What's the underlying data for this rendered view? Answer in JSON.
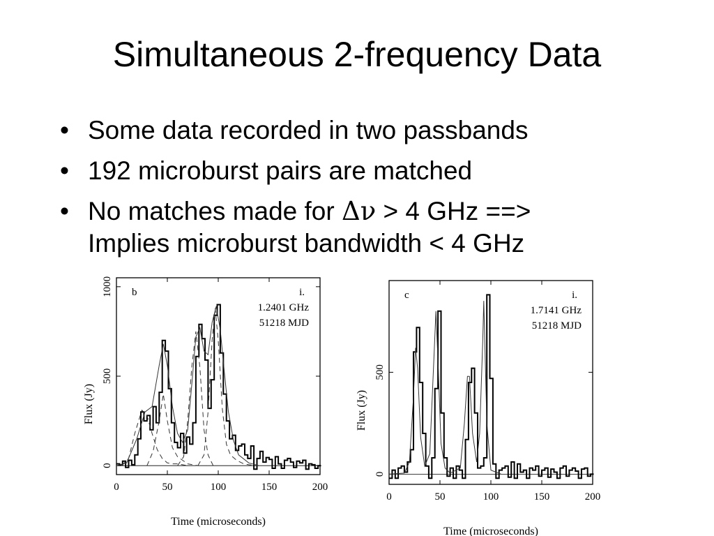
{
  "slide": {
    "title": "Simultaneous 2-frequency Data",
    "bullets": [
      {
        "text": "Some data recorded in two passbands"
      },
      {
        "text": "192 microburst pairs are matched"
      },
      {
        "prefix": "No matches made for ",
        "symbol": "Δν",
        "suffix": " > 4 GHz ==>",
        "continuation": "Implies microburst bandwidth < 4 GHz"
      }
    ],
    "bullet_glyph": "•"
  },
  "chart_data": [
    {
      "type": "line",
      "panel_label": "b",
      "corner_label": "i.",
      "annotations": [
        "1.2401 GHz",
        "51218 MJD"
      ],
      "xlabel": "Time (microseconds)",
      "ylabel": "Flux (Jy)",
      "xlim": [
        0,
        200
      ],
      "ylim": [
        -50,
        1050
      ],
      "x_ticks": [
        0,
        50,
        100,
        150,
        200
      ],
      "y_ticks": [
        0,
        500,
        1000
      ],
      "grid": false,
      "series": [
        {
          "style": "histogram",
          "x": [
            0,
            3,
            6,
            9,
            12,
            15,
            18,
            21,
            24,
            27,
            30,
            33,
            36,
            39,
            42,
            45,
            48,
            51,
            54,
            57,
            60,
            63,
            66,
            69,
            72,
            75,
            78,
            81,
            84,
            87,
            90,
            93,
            96,
            99,
            102,
            105,
            108,
            111,
            114,
            117,
            120,
            123,
            126,
            129,
            132,
            135,
            138,
            141,
            144,
            147,
            150,
            153,
            156,
            159,
            162,
            165,
            168,
            171,
            174,
            177,
            180,
            183,
            186,
            189,
            192,
            195,
            198
          ],
          "values": [
            10,
            5,
            25,
            -10,
            30,
            5,
            60,
            150,
            300,
            250,
            280,
            200,
            330,
            240,
            410,
            700,
            640,
            430,
            240,
            130,
            100,
            180,
            70,
            160,
            120,
            240,
            610,
            790,
            710,
            590,
            320,
            480,
            840,
            900,
            630,
            400,
            250,
            150,
            170,
            85,
            110,
            120,
            60,
            40,
            110,
            -20,
            40,
            80,
            20,
            45,
            35,
            -15,
            50,
            10,
            -15,
            30,
            40,
            20,
            -10,
            25,
            15,
            30,
            -20,
            10,
            5,
            -15,
            0
          ]
        },
        {
          "style": "solid",
          "x": [
            0,
            10,
            20,
            28,
            35,
            42,
            46,
            50,
            55,
            60,
            65,
            70,
            74,
            78,
            82,
            86,
            90,
            94,
            98,
            102,
            106,
            110,
            115,
            120,
            130,
            140
          ],
          "values": [
            0,
            15,
            150,
            300,
            330,
            560,
            680,
            560,
            330,
            180,
            130,
            200,
            450,
            720,
            770,
            640,
            620,
            800,
            890,
            760,
            520,
            300,
            140,
            60,
            15,
            0
          ]
        },
        {
          "style": "dashed",
          "x": [
            5,
            12,
            18,
            25,
            30,
            35,
            40,
            45,
            50,
            55,
            60,
            65,
            70
          ],
          "values": [
            0,
            40,
            180,
            310,
            280,
            180,
            90,
            40,
            15,
            10,
            10,
            5,
            0
          ]
        },
        {
          "style": "dashed",
          "x": [
            30,
            36,
            42,
            46,
            50,
            55,
            60,
            65,
            70,
            75,
            80
          ],
          "values": [
            0,
            80,
            250,
            400,
            250,
            100,
            50,
            30,
            10,
            5,
            0
          ]
        },
        {
          "style": "dashed",
          "x": [
            60,
            66,
            70,
            74,
            78,
            82,
            86,
            90,
            95
          ],
          "values": [
            0,
            50,
            250,
            550,
            750,
            550,
            200,
            60,
            0
          ]
        },
        {
          "style": "dashed",
          "x": [
            80,
            86,
            90,
            94,
            97,
            100,
            104,
            108,
            112,
            118,
            125,
            130,
            140
          ],
          "values": [
            0,
            60,
            300,
            700,
            880,
            700,
            320,
            120,
            60,
            30,
            10,
            5,
            0
          ]
        }
      ]
    },
    {
      "type": "line",
      "panel_label": "c",
      "corner_label": "i.",
      "annotations": [
        "1.7141 GHz",
        "51218 MJD"
      ],
      "xlabel": "Time (microseconds)",
      "ylabel": "Flux (Jy)",
      "xlim": [
        0,
        200
      ],
      "ylim": [
        -50,
        950
      ],
      "x_ticks": [
        0,
        50,
        100,
        150,
        200
      ],
      "y_ticks": [
        0,
        500
      ],
      "grid": false,
      "series": [
        {
          "style": "histogram",
          "x": [
            0,
            3,
            6,
            9,
            12,
            15,
            18,
            21,
            24,
            27,
            30,
            33,
            36,
            39,
            42,
            45,
            48,
            51,
            54,
            57,
            60,
            63,
            66,
            69,
            72,
            75,
            78,
            81,
            84,
            87,
            90,
            93,
            96,
            99,
            102,
            105,
            108,
            111,
            114,
            117,
            120,
            123,
            126,
            129,
            132,
            135,
            138,
            141,
            144,
            147,
            150,
            153,
            156,
            159,
            162,
            165,
            168,
            171,
            174,
            177,
            180,
            183,
            186,
            189,
            192,
            195,
            198
          ],
          "values": [
            -20,
            20,
            -20,
            30,
            40,
            10,
            60,
            120,
            600,
            720,
            450,
            200,
            40,
            -20,
            80,
            420,
            800,
            300,
            80,
            -10,
            30,
            -20,
            40,
            20,
            -20,
            170,
            450,
            520,
            300,
            30,
            40,
            80,
            880,
            470,
            50,
            -20,
            20,
            30,
            40,
            -15,
            60,
            -20,
            50,
            10,
            20,
            -20,
            30,
            20,
            40,
            -10,
            20,
            30,
            -15,
            25,
            10,
            -20,
            30,
            40,
            -10,
            20,
            30,
            15,
            -20,
            25,
            30,
            -10,
            0
          ]
        },
        {
          "style": "solid",
          "x": [
            0,
            15,
            20,
            24,
            26,
            28,
            31,
            35,
            40,
            44,
            46,
            48,
            51,
            55,
            60,
            70,
            74,
            77,
            79,
            82,
            86,
            89,
            92,
            93,
            96,
            100,
            110
          ],
          "values": [
            0,
            5,
            60,
            380,
            620,
            520,
            180,
            40,
            100,
            560,
            800,
            560,
            150,
            30,
            5,
            30,
            250,
            480,
            480,
            200,
            60,
            200,
            650,
            850,
            250,
            20,
            0
          ]
        }
      ]
    }
  ]
}
